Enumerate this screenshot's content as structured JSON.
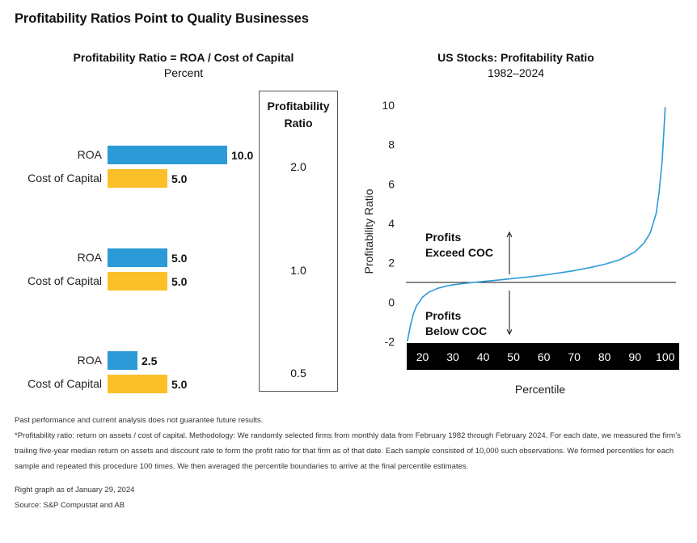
{
  "title": "Profitability Ratios Point to Quality Businesses",
  "left_chart": {
    "title": "Profitability Ratio = ROA / Cost of Capital",
    "subtitle": "Percent",
    "ratio_header": [
      "Profitability",
      "Ratio"
    ]
  },
  "right_chart": {
    "title": "US Stocks: Profitability Ratio",
    "subtitle": "1982–2024",
    "annotation_above": [
      "Profits",
      "Exceed COC"
    ],
    "annotation_below": [
      "Profits",
      "Below COC"
    ]
  },
  "colors": {
    "roa": "#2b9ad6",
    "coc": "#fbbf2a",
    "line": "#2b9ad6",
    "axis_band": "#000000"
  },
  "chart_data": [
    {
      "type": "bar",
      "orientation": "horizontal",
      "groups": [
        {
          "bars": [
            {
              "label": "ROA",
              "value": 10.0,
              "value_label": "10.0"
            },
            {
              "label": "Cost of Capital",
              "value": 5.0,
              "value_label": "5.0"
            }
          ],
          "ratio": "2.0"
        },
        {
          "bars": [
            {
              "label": "ROA",
              "value": 5.0,
              "value_label": "5.0"
            },
            {
              "label": "Cost of Capital",
              "value": 5.0,
              "value_label": "5.0"
            }
          ],
          "ratio": "1.0"
        },
        {
          "bars": [
            {
              "label": "ROA",
              "value": 2.5,
              "value_label": "2.5"
            },
            {
              "label": "Cost of Capital",
              "value": 5.0,
              "value_label": "5.0"
            }
          ],
          "ratio": "0.5"
        }
      ]
    },
    {
      "type": "line",
      "xlabel": "Percentile",
      "ylabel": "Profitability Ratio",
      "xticks": [
        20,
        30,
        40,
        50,
        60,
        70,
        80,
        90,
        100
      ],
      "yticks": [
        -2,
        0,
        2,
        4,
        6,
        8,
        10
      ],
      "xlim": [
        14,
        103
      ],
      "ylim": [
        -2,
        10
      ],
      "reference_line_y": 1,
      "x": [
        15,
        16,
        17,
        18,
        20,
        22,
        25,
        28,
        30,
        35,
        40,
        45,
        50,
        55,
        60,
        65,
        70,
        75,
        80,
        85,
        90,
        93,
        95,
        97,
        98,
        99,
        100
      ],
      "y": [
        -2.0,
        -1.2,
        -0.6,
        -0.2,
        0.25,
        0.5,
        0.7,
        0.82,
        0.88,
        0.97,
        1.05,
        1.12,
        1.2,
        1.28,
        1.37,
        1.48,
        1.6,
        1.75,
        1.92,
        2.15,
        2.55,
        3.0,
        3.5,
        4.5,
        5.6,
        7.2,
        9.9
      ]
    }
  ],
  "footnotes": [
    "Past performance and current analysis does not guarantee future results.",
    "*Profitability ratio: return on assets / cost of capital. Methodology:  We randomly selected firms from monthly data from February 1982 through February 2024. For each date, we measured the firm’s",
    "trailing five-year median return on assets and discount rate to form the profit ratio for that firm as of that date. Each sample consisted of 10,000 such observations. We formed percentiles for each",
    "sample and repeated this procedure 100 times.  We then averaged the percentile boundaries to arrive at the final percentile estimates."
  ],
  "notes": [
    "Right graph as of January 29, 2024",
    "Source: S&P Compustat and AB"
  ]
}
